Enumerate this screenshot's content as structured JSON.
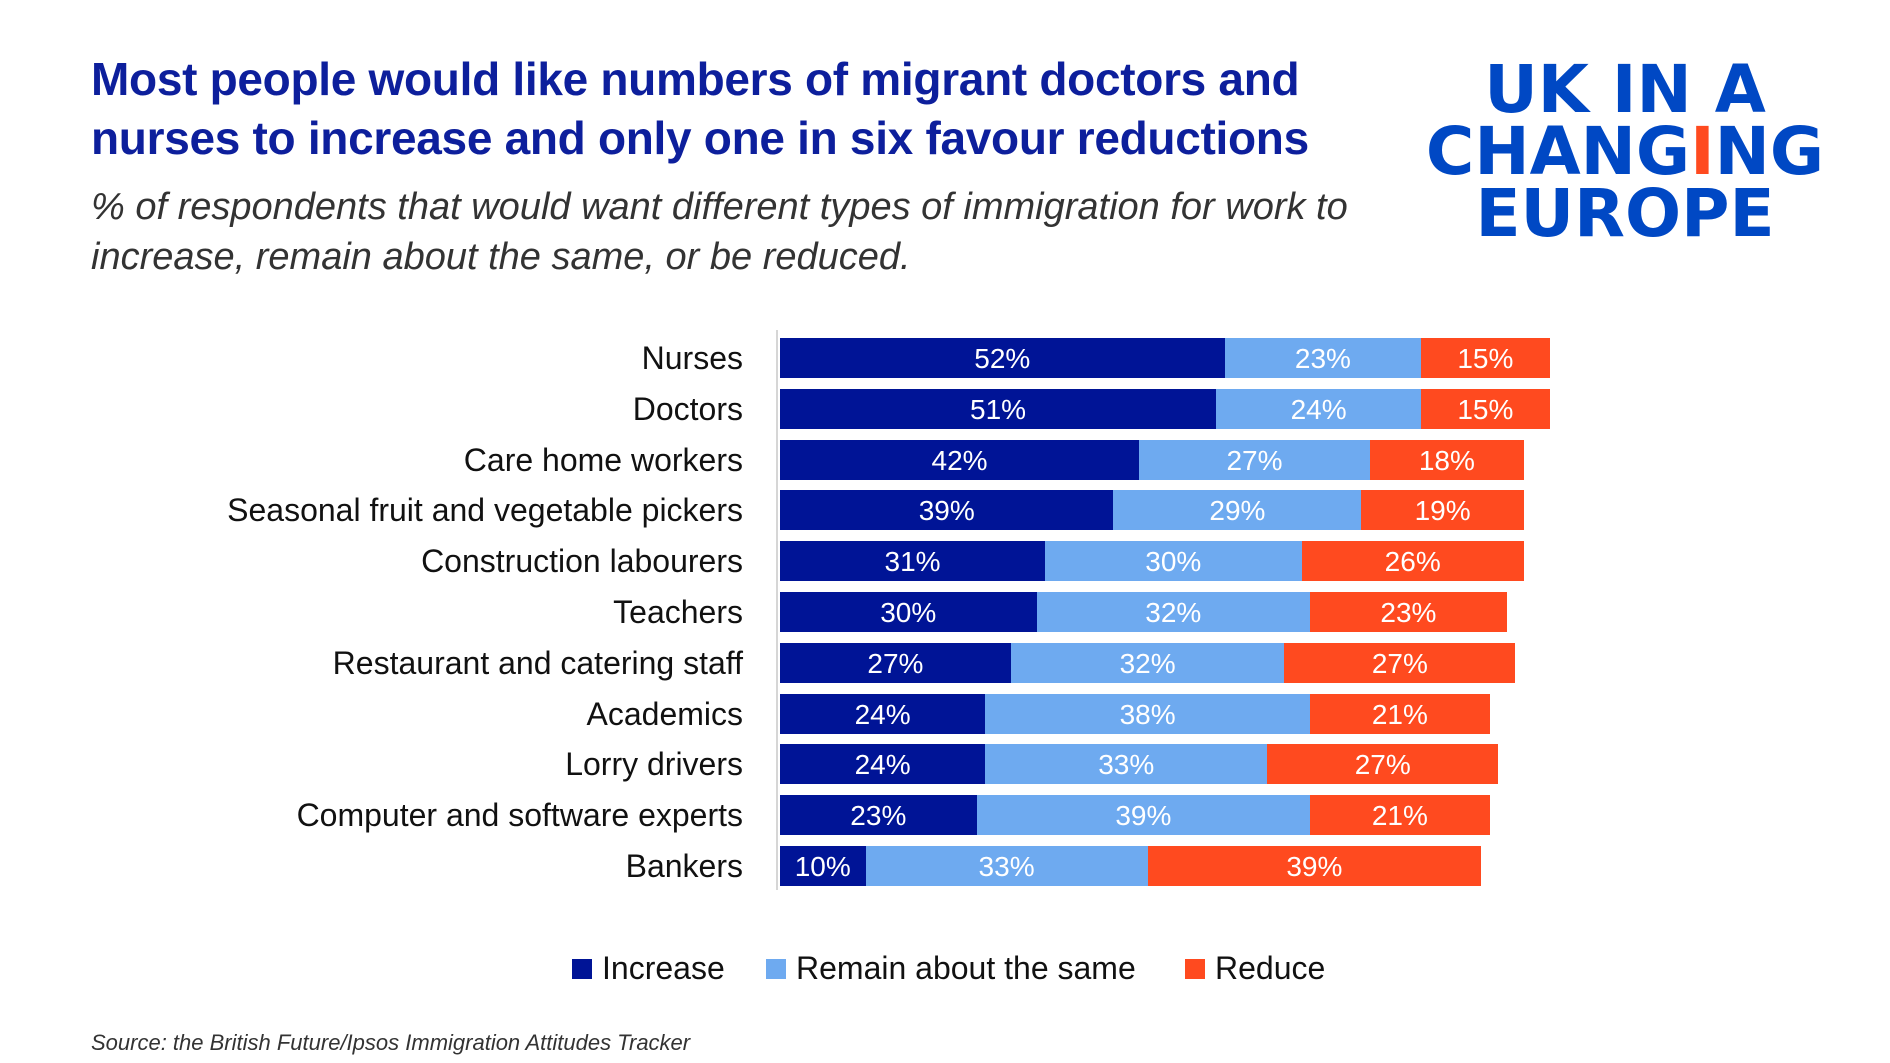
{
  "title": "Most people would like numbers of migrant doctors and nurses to increase and only one in six favour reductions",
  "subtitle": "% of respondents that would want different types of immigration for work to increase, remain about the same, or be reduced.",
  "logo": {
    "text": "UK IN A CHANGING EUROPE",
    "color": "#0048c4",
    "accent": "#ff4a1f"
  },
  "source": "Source: the British Future/Ipsos Immigration Attitudes Tracker",
  "chart_data": {
    "type": "bar",
    "orientation": "horizontal",
    "stacked": true,
    "categories": [
      "Nurses",
      "Doctors",
      "Care home workers",
      "Seasonal fruit and vegetable pickers",
      "Construction labourers",
      "Teachers",
      "Restaurant and catering staff",
      "Academics",
      "Lorry drivers",
      "Computer and software experts",
      "Bankers"
    ],
    "series": [
      {
        "name": "Increase",
        "color": "#001496",
        "values": [
          52,
          51,
          42,
          39,
          31,
          30,
          27,
          24,
          24,
          23,
          10
        ]
      },
      {
        "name": "Remain about the same",
        "color": "#6eaaf0",
        "values": [
          23,
          24,
          27,
          29,
          30,
          32,
          32,
          38,
          33,
          39,
          33
        ]
      },
      {
        "name": "Reduce",
        "color": "#ff4a1f",
        "values": [
          15,
          15,
          18,
          19,
          26,
          23,
          27,
          21,
          27,
          21,
          39
        ]
      }
    ],
    "value_suffix": "%",
    "legend_position": "bottom",
    "grid": false
  }
}
